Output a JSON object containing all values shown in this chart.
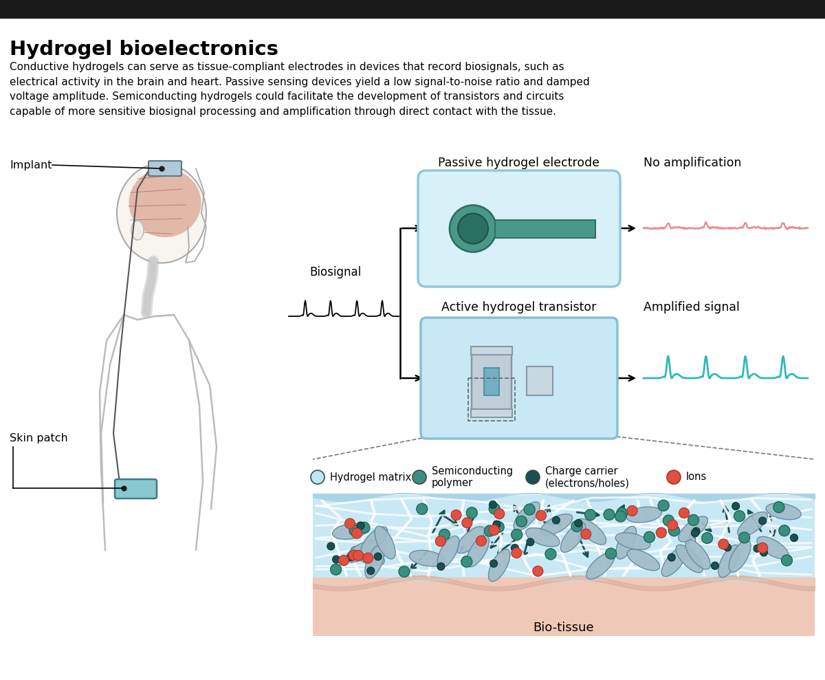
{
  "title": "Hydrogel bioelectronics",
  "body_text": "Conductive hydrogels can serve as tissue-compliant electrodes in devices that record biosignals, such as\nelectrical activity in the brain and heart. Passive sensing devices yield a low signal-to-noise ratio and damped\nvoltage amplitude. Semiconducting hydrogels could facilitate the development of transistors and circuits\ncapable of more sensitive biosignal processing and amplification through direct contact with the tissue.",
  "top_bar_color": "#1a1a1a",
  "bg_color": "#ffffff",
  "passive_label": "Passive hydrogel electrode",
  "passive_result": "No amplification",
  "active_label": "Active hydrogel transistor",
  "active_result": "Amplified signal",
  "biosignal_label": "Biosignal",
  "legend_items": [
    {
      "label": "Hydrogel matrix",
      "color": "#b8e8f5"
    },
    {
      "label": "Semiconducting\npolymer",
      "color": "#3a9080"
    },
    {
      "label": "Charge carrier\n(electrons/holes)",
      "color": "#1a5050"
    },
    {
      "label": "Ions",
      "color": "#e05040"
    }
  ],
  "implant_label": "Implant",
  "skin_patch_label": "Skin patch",
  "biotissue_label": "Bio-tissue",
  "teal_color": "#3a9080",
  "dark_teal": "#1a5050",
  "light_blue_box": "#d5eef8",
  "box_edge": "#90c8d8",
  "salmon_color": "#e05040",
  "pink_signal": "#e89090",
  "cyan_signal": "#30b8b8",
  "tissue_color": "#f0c8b8",
  "hydrogel_bg": "#c0e5f0"
}
